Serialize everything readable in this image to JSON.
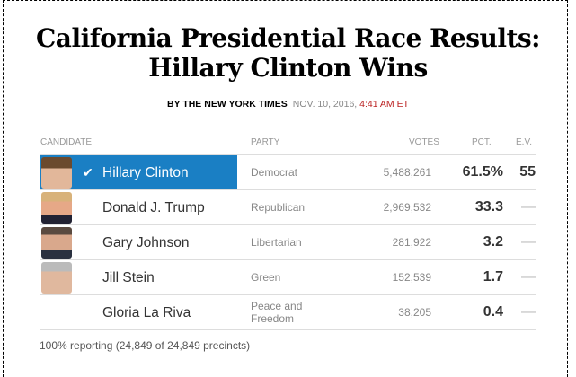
{
  "title": "California Presidential Race Results: Hillary Clinton Wins",
  "byline": {
    "by": "BY THE NEW YORK TIMES",
    "date": "NOV. 10, 2016, ",
    "time": "4:41 AM ET"
  },
  "headers": {
    "candidate": "CANDIDATE",
    "party": "PARTY",
    "votes": "VOTES",
    "pct": "PCT.",
    "ev": "E.V."
  },
  "rows": [
    {
      "name": "Hillary Clinton",
      "party": "Democrat",
      "votes": "5,488,261",
      "pct": "61.5%",
      "ev": "55",
      "winner": true,
      "check": "✔"
    },
    {
      "name": "Donald J. Trump",
      "party": "Republican",
      "votes": "2,969,532",
      "pct": "33.3",
      "ev": "—"
    },
    {
      "name": "Gary Johnson",
      "party": "Libertarian",
      "votes": "281,922",
      "pct": "3.2",
      "ev": "—"
    },
    {
      "name": "Jill Stein",
      "party": "Green",
      "votes": "152,539",
      "pct": "1.7",
      "ev": "—"
    },
    {
      "name": "Gloria La Riva",
      "party": "Peace and Freedom",
      "votes": "38,205",
      "pct": "0.4",
      "ev": "—"
    }
  ],
  "footer": "100% reporting (24,849 of 24,849 precincts)",
  "colors": {
    "winner": "#1a7fc4",
    "time": "#bb2222"
  }
}
